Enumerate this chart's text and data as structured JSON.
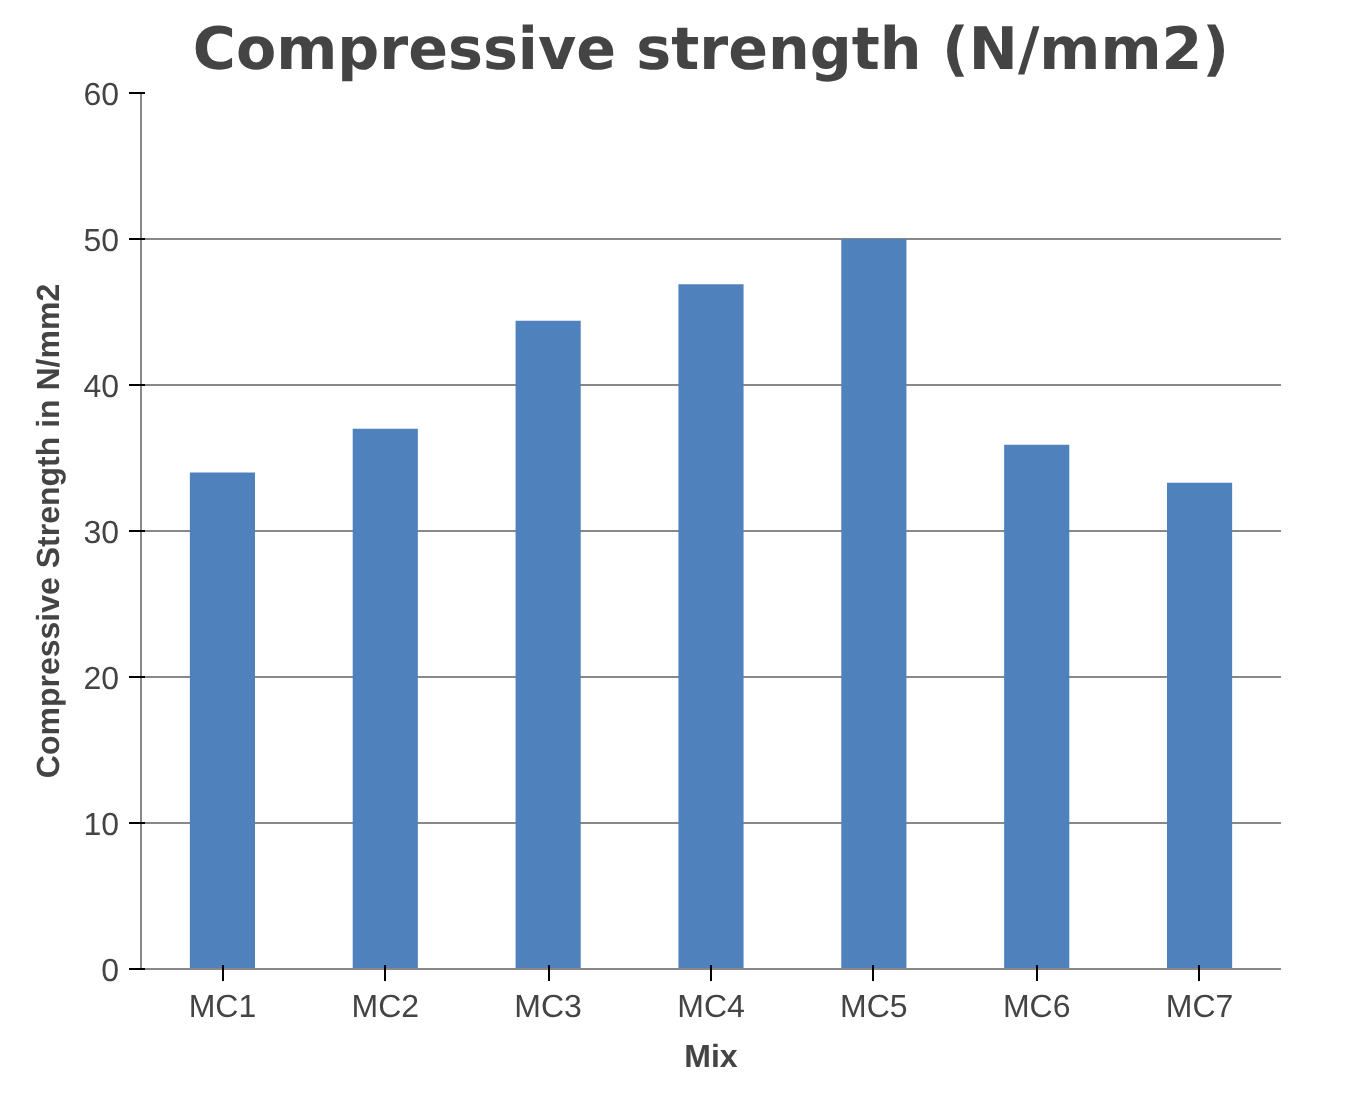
{
  "chart_data": {
    "type": "bar",
    "title": "Compressive strength (N/mm2)",
    "xlabel": "Mix",
    "ylabel": "Compressive Strength in N/mm2",
    "categories": [
      "MC1",
      "MC2",
      "MC3",
      "MC4",
      "MC5",
      "MC6",
      "MC7"
    ],
    "values": [
      34.0,
      37.0,
      44.4,
      46.9,
      50.0,
      35.9,
      33.3
    ],
    "color": "#4f81bd",
    "ylim": [
      0,
      60
    ],
    "yticks": [
      0,
      10,
      20,
      30,
      40,
      50,
      60
    ],
    "grid": "y"
  }
}
